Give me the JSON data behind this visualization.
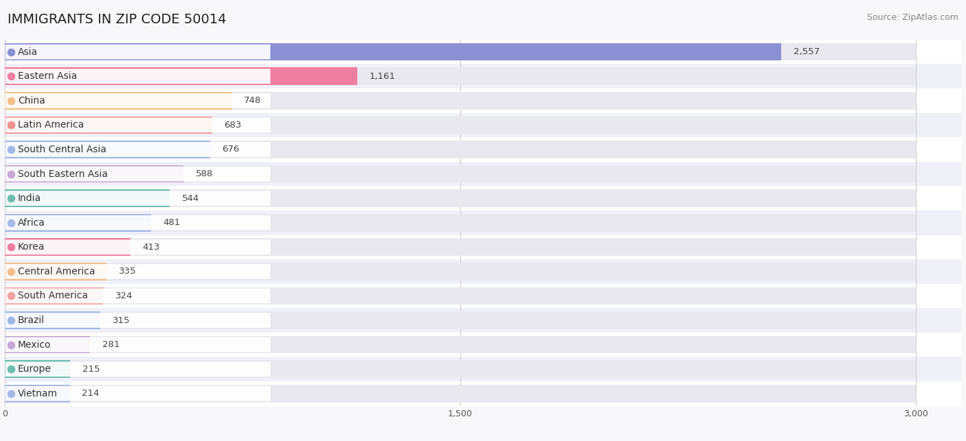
{
  "title": "IMMIGRANTS IN ZIP CODE 50014",
  "source_text": "Source: ZipAtlas.com",
  "categories": [
    "Asia",
    "Eastern Asia",
    "China",
    "Latin America",
    "South Central Asia",
    "South Eastern Asia",
    "India",
    "Africa",
    "Korea",
    "Central America",
    "South America",
    "Brazil",
    "Mexico",
    "Europe",
    "Vietnam"
  ],
  "values": [
    2557,
    1161,
    748,
    683,
    676,
    588,
    544,
    481,
    413,
    335,
    324,
    315,
    281,
    215,
    214
  ],
  "bar_colors": [
    "#8B8FD4",
    "#F07EA0",
    "#F5BE8A",
    "#F59090",
    "#9FB8E8",
    "#C4A8D8",
    "#6DBDAD",
    "#A8B8E8",
    "#F07EA0",
    "#F5BE8A",
    "#F5A0A0",
    "#9FB8E8",
    "#C4A8D8",
    "#6DBDAD",
    "#A8B8E8"
  ],
  "xlim": [
    0,
    3000
  ],
  "xticks": [
    0,
    1500,
    3000
  ],
  "background_color": "#f8f8fa",
  "bar_bg_color": "#e8e8ee",
  "row_colors": [
    "#ffffff",
    "#f0f0f8"
  ],
  "title_fontsize": 14,
  "label_fontsize": 10,
  "value_fontsize": 9.5,
  "source_fontsize": 9
}
